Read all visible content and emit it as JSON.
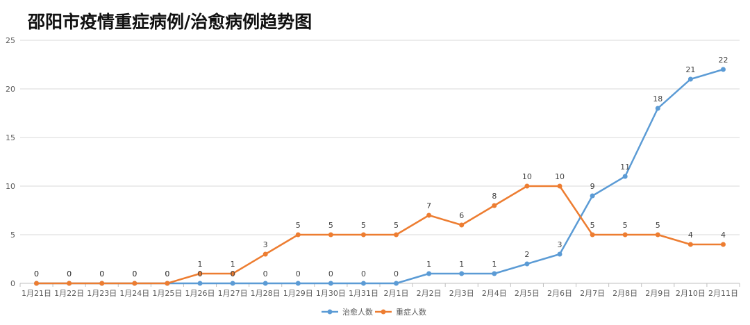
{
  "chart_data": {
    "type": "line",
    "title": "邵阳市疫情重症病例/治愈病例趋势图",
    "xlabel": "",
    "ylabel": "",
    "ylim": [
      0,
      25
    ],
    "yticks": [
      0,
      5,
      10,
      15,
      20,
      25
    ],
    "grid": true,
    "legend_position": "bottom-center",
    "categories": [
      "1月21日",
      "1月22日",
      "1月23日",
      "1月24日",
      "1月25日",
      "1月26日",
      "1月27日",
      "1月28日",
      "1月29日",
      "1月30日",
      "1月31日",
      "2月1日",
      "2月2日",
      "2月3日",
      "2月4日",
      "2月5日",
      "2月6日",
      "2月7日",
      "2月8日",
      "2月9日",
      "2月10日",
      "2月11日"
    ],
    "series": [
      {
        "name": "治愈人数",
        "color": "#5B9BD5",
        "values": [
          0,
          0,
          0,
          0,
          0,
          0,
          0,
          0,
          0,
          0,
          0,
          0,
          1,
          1,
          1,
          2,
          3,
          9,
          11,
          18,
          21,
          22
        ]
      },
      {
        "name": "重症人数",
        "color": "#ED7D31",
        "values": [
          0,
          0,
          0,
          0,
          0,
          1,
          1,
          3,
          5,
          5,
          5,
          5,
          7,
          6,
          8,
          10,
          10,
          5,
          5,
          5,
          4,
          4
        ]
      }
    ]
  }
}
